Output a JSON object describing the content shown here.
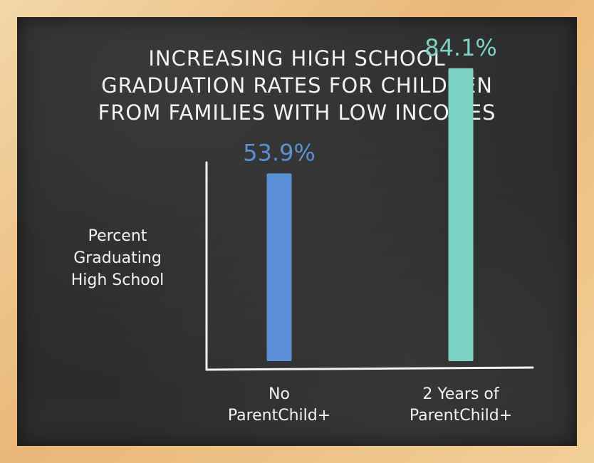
{
  "chart_data": {
    "type": "bar",
    "title": "INCREASING HIGH SCHOOL GRADUATION RATES FOR CHILDREN FROM FAMILIES WITH LOW INCOMES",
    "title_lines": [
      "INCREASING HIGH SCHOOL",
      "GRADUATION RATES FOR CHILDREN",
      "FROM FAMILIES WITH LOW INCOMES"
    ],
    "ylabel_lines": [
      "Percent",
      "Graduating",
      "High School"
    ],
    "xlabel": "",
    "categories": [
      "No ParentChild+",
      "2 Years of ParentChild+"
    ],
    "category_lines": [
      [
        "No",
        "ParentChild+"
      ],
      [
        "2 Years of",
        "ParentChild+"
      ]
    ],
    "values": [
      53.9,
      84.1
    ],
    "data_labels": [
      "53.9%",
      "84.1%"
    ],
    "ylim": [
      0,
      100
    ],
    "grid": false,
    "colors": [
      "#5b8fd6",
      "#7cd3c4"
    ],
    "axis_color": "#f2f2f2"
  }
}
